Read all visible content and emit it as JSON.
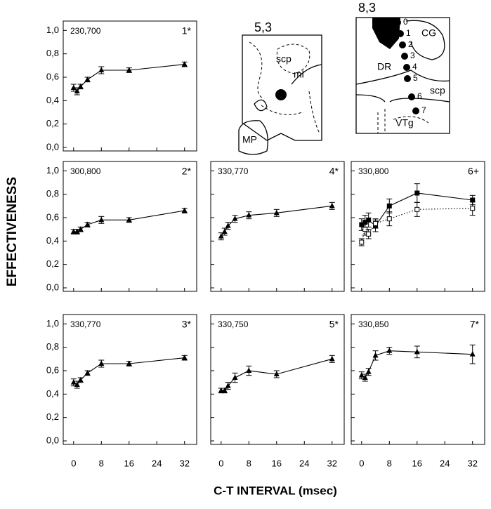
{
  "figure": {
    "ylabel": "EFFECTIVENESS",
    "xlabel": "C-T INTERVAL (msec)"
  },
  "chart_data": [
    {
      "type": "line",
      "title": "230,700",
      "annotation": "1*",
      "x": [
        0,
        1,
        2,
        4,
        8,
        16,
        32
      ],
      "series": [
        {
          "color": "#000",
          "marker": "triangle",
          "style": "solid",
          "values": [
            0.51,
            0.48,
            0.52,
            0.58,
            0.66,
            0.66,
            0.71
          ],
          "errors": [
            0.03,
            0.03,
            0.02,
            0.02,
            0.03,
            0.02,
            0.02
          ]
        }
      ],
      "xlim": [
        -3,
        35.5
      ],
      "ylim": [
        -0.03,
        1.08
      ],
      "yticks": [
        {
          "value": 0,
          "label": "0,0"
        },
        {
          "value": 0.2,
          "label": "0,2"
        },
        {
          "value": 0.4,
          "label": "0,4"
        },
        {
          "value": 0.6,
          "label": "0,6"
        },
        {
          "value": 0.8,
          "label": "0,8"
        },
        {
          "value": 1,
          "label": "1,0"
        }
      ]
    },
    {
      "type": "line",
      "title": "300,800",
      "annotation": "2*",
      "x": [
        0,
        1,
        2,
        4,
        8,
        16,
        32
      ],
      "series": [
        {
          "color": "#000",
          "marker": "triangle",
          "style": "solid",
          "values": [
            0.48,
            0.48,
            0.5,
            0.54,
            0.58,
            0.58,
            0.66
          ],
          "errors": [
            0.02,
            0.02,
            0.02,
            0.02,
            0.03,
            0.02,
            0.02
          ]
        }
      ],
      "xlim": [
        -3,
        35.5
      ],
      "ylim": [
        -0.03,
        1.08
      ],
      "yticks": [
        {
          "value": 0,
          "label": "0,0"
        },
        {
          "value": 0.2,
          "label": "0,2"
        },
        {
          "value": 0.4,
          "label": "0,4"
        },
        {
          "value": 0.6,
          "label": "0,6"
        },
        {
          "value": 0.8,
          "label": "0,8"
        },
        {
          "value": 1,
          "label": "1,0"
        }
      ]
    },
    {
      "type": "line",
      "title": "330,770",
      "annotation": "4*",
      "x": [
        0,
        1,
        2,
        4,
        8,
        16,
        32
      ],
      "series": [
        {
          "color": "#000",
          "marker": "triangle",
          "style": "solid",
          "values": [
            0.44,
            0.48,
            0.53,
            0.59,
            0.62,
            0.64,
            0.7
          ],
          "errors": [
            0.03,
            0.03,
            0.03,
            0.03,
            0.03,
            0.03,
            0.03
          ]
        }
      ],
      "xlim": [
        -3,
        35.5
      ],
      "ylim": [
        -0.03,
        1.08
      ]
    },
    {
      "type": "line",
      "title": "330,800",
      "annotation": "6+",
      "x": [
        0,
        1,
        2,
        4,
        8,
        16,
        32
      ],
      "series": [
        {
          "color": "#000",
          "marker": "square",
          "style": "solid",
          "values": [
            0.54,
            0.56,
            0.58,
            0.53,
            0.7,
            0.81,
            0.75
          ],
          "errors": [
            0.05,
            0.06,
            0.06,
            0.05,
            0.06,
            0.08,
            0.04
          ]
        },
        {
          "color": "#000",
          "marker": "open-square",
          "style": "dotted",
          "values": [
            0.39,
            0.5,
            0.46,
            0.55,
            0.59,
            0.67,
            0.68
          ],
          "errors": [
            0.03,
            0.05,
            0.04,
            0.04,
            0.06,
            0.06,
            0.06
          ]
        }
      ],
      "xlim": [
        -3,
        35.5
      ],
      "ylim": [
        -0.03,
        1.08
      ]
    },
    {
      "type": "line",
      "title": "330,770",
      "annotation": "3*",
      "x": [
        0,
        1,
        2,
        4,
        8,
        16,
        32
      ],
      "series": [
        {
          "color": "#000",
          "marker": "triangle",
          "style": "solid",
          "values": [
            0.5,
            0.48,
            0.52,
            0.58,
            0.66,
            0.66,
            0.71
          ],
          "errors": [
            0.03,
            0.03,
            0.02,
            0.02,
            0.03,
            0.02,
            0.02
          ]
        }
      ],
      "xlim": [
        -3,
        35.5
      ],
      "ylim": [
        -0.03,
        1.08
      ],
      "yticks": [
        {
          "value": 0,
          "label": "0,0"
        },
        {
          "value": 0.2,
          "label": "0,2"
        },
        {
          "value": 0.4,
          "label": "0,4"
        },
        {
          "value": 0.6,
          "label": "0,6"
        },
        {
          "value": 0.8,
          "label": "0,8"
        },
        {
          "value": 1,
          "label": "1,0"
        }
      ],
      "xticks": [
        0,
        8,
        16,
        24,
        32
      ]
    },
    {
      "type": "line",
      "title": "330,750",
      "annotation": "5*",
      "x": [
        0,
        1,
        2,
        4,
        8,
        16,
        32
      ],
      "series": [
        {
          "color": "#000",
          "marker": "triangle",
          "style": "solid",
          "values": [
            0.43,
            0.43,
            0.47,
            0.54,
            0.6,
            0.57,
            0.7
          ],
          "errors": [
            0.02,
            0.02,
            0.03,
            0.04,
            0.04,
            0.03,
            0.03
          ]
        }
      ],
      "xlim": [
        -3,
        35.5
      ],
      "ylim": [
        -0.03,
        1.08
      ],
      "xticks": [
        0,
        8,
        16,
        24,
        32
      ]
    },
    {
      "type": "line",
      "title": "330,850",
      "annotation": "7*",
      "x": [
        0,
        1,
        2,
        4,
        8,
        16,
        32
      ],
      "series": [
        {
          "color": "#000",
          "marker": "triangle",
          "style": "solid",
          "values": [
            0.56,
            0.54,
            0.59,
            0.73,
            0.77,
            0.76,
            0.74
          ],
          "errors": [
            0.03,
            0.03,
            0.03,
            0.04,
            0.03,
            0.05,
            0.08
          ]
        }
      ],
      "xlim": [
        -3,
        35.5
      ],
      "ylim": [
        -0.03,
        1.08
      ],
      "xticks": [
        0,
        8,
        16,
        24,
        32
      ]
    }
  ],
  "diagrams": [
    {
      "title": "5,3",
      "labels": [
        "scp",
        "ml",
        "MP"
      ]
    },
    {
      "title": "8,3",
      "labels": [
        "CG",
        "DR",
        "scp",
        "VTg"
      ],
      "sites": [
        "0",
        "1",
        "2",
        "3",
        "4",
        "5",
        "6",
        "7"
      ]
    }
  ]
}
